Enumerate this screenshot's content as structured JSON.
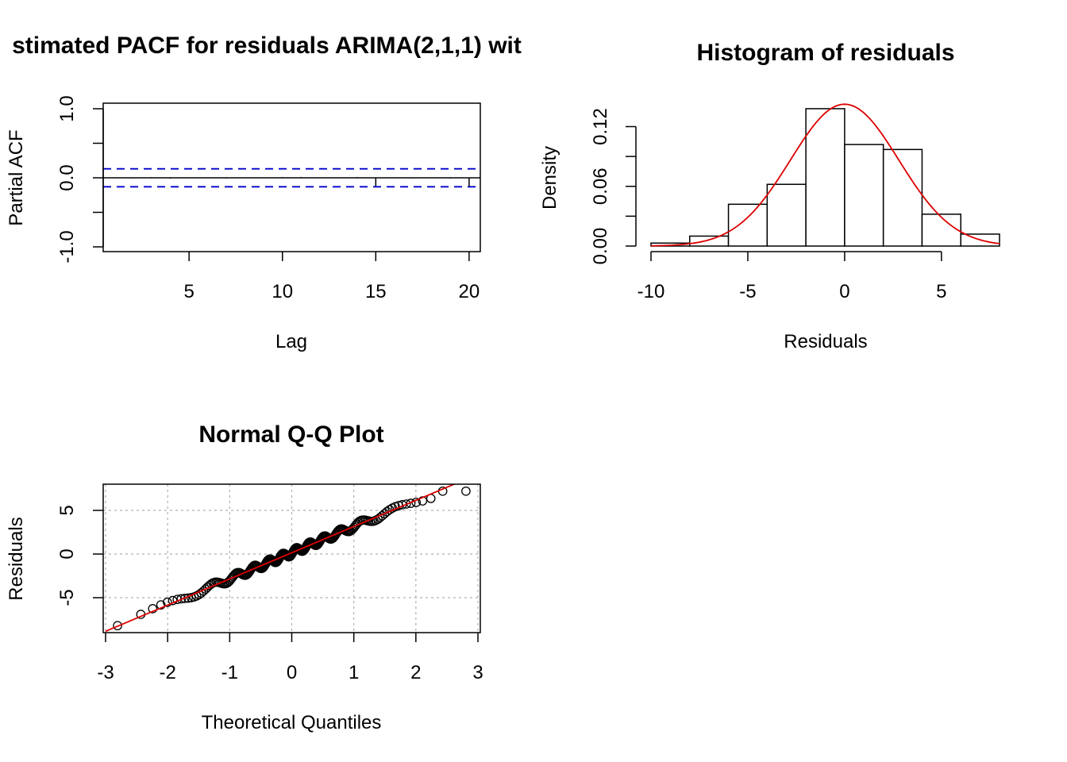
{
  "chart_data": [
    {
      "type": "bar",
      "subtype": "pacf",
      "title": "stimated PACF for residuals ARIMA(2,1,1) wit",
      "xlabel": "Lag",
      "ylabel": "Partial ACF",
      "xlim": [
        0.4,
        20.6
      ],
      "ylim": [
        -1.0,
        1.0
      ],
      "x_ticks": [
        5,
        10,
        15,
        20
      ],
      "y_ticks": [
        "-1.0",
        "0.0",
        "1.0"
      ],
      "y_tick_values": [
        -1.0,
        -0.5,
        0.0,
        0.5,
        1.0
      ],
      "lags": [
        1,
        2,
        3,
        4,
        5,
        6,
        7,
        8,
        9,
        10,
        11,
        12,
        13,
        14,
        15,
        16,
        17,
        18,
        19,
        20
      ],
      "values": [
        0.005,
        -0.008,
        0.01,
        -0.012,
        0.006,
        0.004,
        -0.01,
        0.008,
        -0.006,
        0.01,
        0.012,
        -0.004,
        0.006,
        0.01,
        -0.12,
        0.006,
        -0.008,
        0.004,
        -0.01,
        -0.13
      ],
      "confidence_band": 0.13,
      "band_color": "#0000cc"
    },
    {
      "type": "bar",
      "subtype": "histogram",
      "title": "Histogram of residuals",
      "xlabel": "Residuals",
      "ylabel": "Density",
      "xlim": [
        -10,
        8
      ],
      "ylim": [
        0,
        0.14
      ],
      "x_ticks": [
        "-10",
        "-5",
        "0",
        "5"
      ],
      "x_tick_values": [
        -10,
        -5,
        0,
        5
      ],
      "y_ticks": [
        "0.00",
        "0.06",
        "0.12"
      ],
      "y_tick_values": [
        0.0,
        0.03,
        0.06,
        0.09,
        0.12
      ],
      "bin_edges": [
        -10,
        -8,
        -6,
        -4,
        -2,
        0,
        2,
        4,
        6,
        8
      ],
      "densities": [
        0.003,
        0.01,
        0.042,
        0.062,
        0.138,
        0.102,
        0.097,
        0.032,
        0.012
      ],
      "normal_curve": {
        "mean": 0.0,
        "sd": 2.8,
        "color": "#dd0000"
      }
    },
    {
      "type": "scatter",
      "subtype": "qqplot",
      "title": "Normal Q-Q Plot",
      "xlabel": "Theoretical Quantiles",
      "ylabel": "Residuals",
      "xlim": [
        -3,
        3
      ],
      "ylim": [
        -8.5,
        7.5
      ],
      "x_ticks": [
        "-3",
        "-2",
        "-1",
        "0",
        "1",
        "2",
        "3"
      ],
      "x_tick_values": [
        -3,
        -2,
        -1,
        0,
        1,
        2,
        3
      ],
      "y_ticks": [
        "-5",
        "0",
        "5"
      ],
      "y_tick_values": [
        -5,
        0,
        5
      ],
      "n_points": 200,
      "highest_residuals": [
        7.2,
        7.2
      ],
      "lowest_residual": -8.2,
      "reference_line": {
        "intercept": 0.15,
        "slope": 3.0,
        "color": "#dd0000"
      },
      "grid": true
    }
  ]
}
